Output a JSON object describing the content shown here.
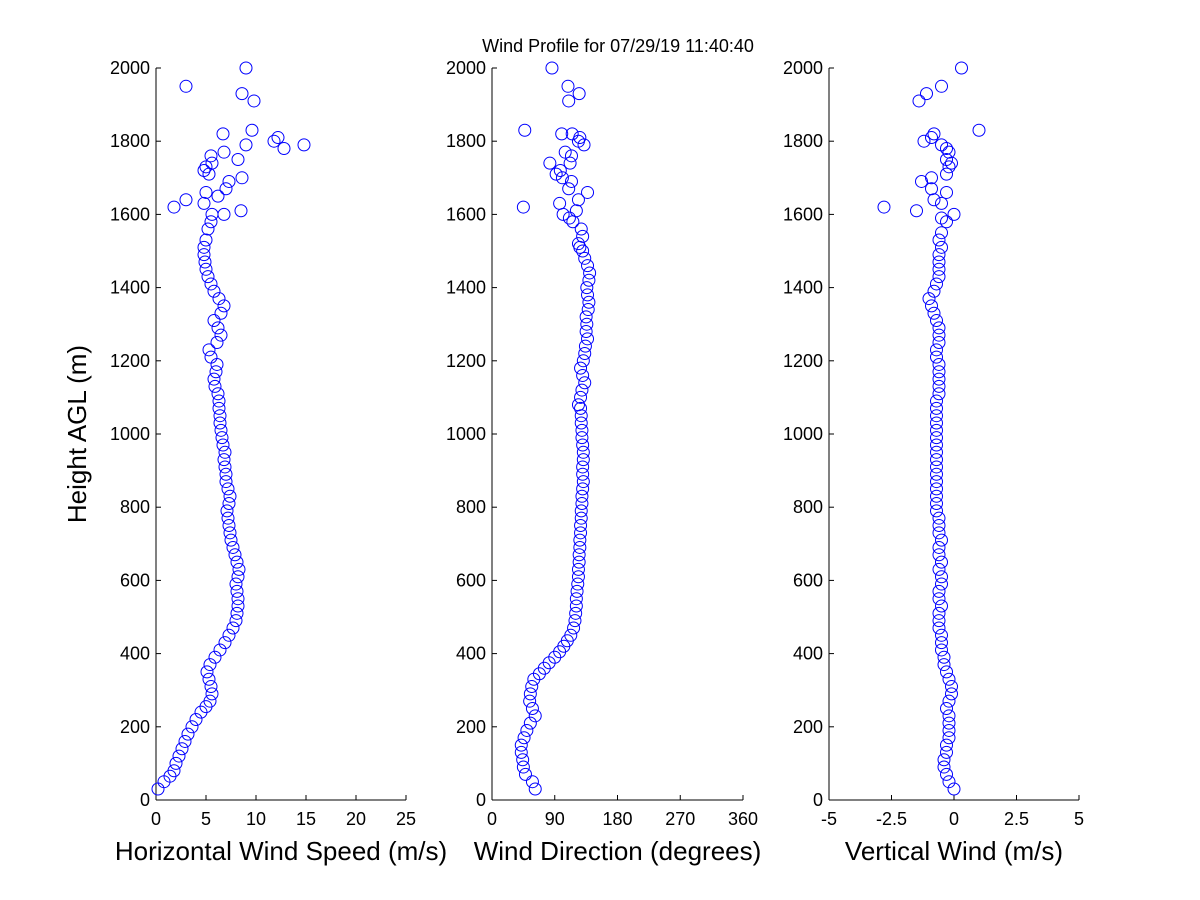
{
  "title": "Wind Profile for  07/29/19 11:40:40",
  "marker_color": "#0000ff",
  "chart_data": [
    {
      "type": "scatter",
      "xlabel": "Horizontal Wind Speed (m/s)",
      "ylabel": "Height AGL (m)",
      "xlim": [
        0,
        25
      ],
      "ylim": [
        0,
        2000
      ],
      "xticks": [
        "0",
        "5",
        "10",
        "15",
        "20",
        "25"
      ],
      "yticks": [
        "0",
        "200",
        "400",
        "600",
        "800",
        "1000",
        "1200",
        "1400",
        "1600",
        "1800",
        "2000"
      ],
      "grid": false,
      "points": [
        [
          0.2,
          30
        ],
        [
          0.8,
          50
        ],
        [
          1.4,
          65
        ],
        [
          1.8,
          80
        ],
        [
          2.0,
          100
        ],
        [
          2.3,
          120
        ],
        [
          2.6,
          140
        ],
        [
          2.9,
          160
        ],
        [
          3.2,
          180
        ],
        [
          3.6,
          200
        ],
        [
          4.0,
          220
        ],
        [
          4.5,
          240
        ],
        [
          5.0,
          255
        ],
        [
          5.4,
          270
        ],
        [
          5.6,
          290
        ],
        [
          5.5,
          310
        ],
        [
          5.3,
          330
        ],
        [
          5.1,
          350
        ],
        [
          5.4,
          370
        ],
        [
          5.9,
          390
        ],
        [
          6.4,
          410
        ],
        [
          6.9,
          430
        ],
        [
          7.3,
          450
        ],
        [
          7.7,
          470
        ],
        [
          8.0,
          490
        ],
        [
          8.1,
          510
        ],
        [
          8.2,
          530
        ],
        [
          8.2,
          550
        ],
        [
          8.1,
          570
        ],
        [
          8.0,
          590
        ],
        [
          8.2,
          610
        ],
        [
          8.3,
          630
        ],
        [
          8.1,
          650
        ],
        [
          7.9,
          670
        ],
        [
          7.7,
          690
        ],
        [
          7.5,
          710
        ],
        [
          7.4,
          730
        ],
        [
          7.3,
          750
        ],
        [
          7.2,
          770
        ],
        [
          7.1,
          790
        ],
        [
          7.3,
          810
        ],
        [
          7.4,
          830
        ],
        [
          7.2,
          850
        ],
        [
          7.0,
          870
        ],
        [
          7.0,
          890
        ],
        [
          6.9,
          910
        ],
        [
          6.8,
          930
        ],
        [
          6.9,
          950
        ],
        [
          6.7,
          970
        ],
        [
          6.6,
          990
        ],
        [
          6.5,
          1010
        ],
        [
          6.4,
          1030
        ],
        [
          6.4,
          1050
        ],
        [
          6.3,
          1070
        ],
        [
          6.3,
          1090
        ],
        [
          6.2,
          1110
        ],
        [
          5.9,
          1130
        ],
        [
          5.8,
          1150
        ],
        [
          6.0,
          1170
        ],
        [
          6.1,
          1190
        ],
        [
          5.5,
          1210
        ],
        [
          5.3,
          1230
        ],
        [
          6.1,
          1250
        ],
        [
          6.5,
          1270
        ],
        [
          6.2,
          1290
        ],
        [
          5.8,
          1310
        ],
        [
          6.5,
          1330
        ],
        [
          6.8,
          1350
        ],
        [
          6.3,
          1370
        ],
        [
          5.8,
          1390
        ],
        [
          5.5,
          1410
        ],
        [
          5.2,
          1430
        ],
        [
          5.0,
          1450
        ],
        [
          4.9,
          1470
        ],
        [
          4.8,
          1490
        ],
        [
          4.8,
          1510
        ],
        [
          5.0,
          1530
        ],
        [
          5.2,
          1560
        ],
        [
          5.5,
          1580
        ],
        [
          5.6,
          1600
        ],
        [
          6.8,
          1600
        ],
        [
          8.5,
          1610
        ],
        [
          1.8,
          1620
        ],
        [
          3.0,
          1640
        ],
        [
          4.8,
          1630
        ],
        [
          5.0,
          1660
        ],
        [
          6.2,
          1650
        ],
        [
          7.0,
          1670
        ],
        [
          7.3,
          1690
        ],
        [
          8.6,
          1700
        ],
        [
          5.3,
          1710
        ],
        [
          4.8,
          1720
        ],
        [
          5.0,
          1730
        ],
        [
          5.6,
          1740
        ],
        [
          8.2,
          1750
        ],
        [
          5.5,
          1760
        ],
        [
          6.8,
          1770
        ],
        [
          9.0,
          1790
        ],
        [
          11.8,
          1800
        ],
        [
          12.8,
          1780
        ],
        [
          12.2,
          1810
        ],
        [
          14.8,
          1790
        ],
        [
          6.7,
          1820
        ],
        [
          9.6,
          1830
        ],
        [
          9.8,
          1910
        ],
        [
          8.6,
          1930
        ],
        [
          3.0,
          1950
        ],
        [
          9.0,
          2000
        ]
      ]
    },
    {
      "type": "scatter",
      "xlabel": "Wind Direction (degrees)",
      "ylabel": "",
      "xlim": [
        0,
        360
      ],
      "ylim": [
        0,
        2000
      ],
      "xticks": [
        "0",
        "90",
        "180",
        "270",
        "360"
      ],
      "yticks": [
        "0",
        "200",
        "400",
        "600",
        "800",
        "1000",
        "1200",
        "1400",
        "1600",
        "1800",
        "2000"
      ],
      "grid": false,
      "points": [
        [
          62,
          30
        ],
        [
          58,
          50
        ],
        [
          48,
          70
        ],
        [
          45,
          90
        ],
        [
          44,
          110
        ],
        [
          42,
          130
        ],
        [
          42,
          150
        ],
        [
          46,
          170
        ],
        [
          50,
          190
        ],
        [
          55,
          210
        ],
        [
          62,
          230
        ],
        [
          58,
          250
        ],
        [
          54,
          270
        ],
        [
          55,
          290
        ],
        [
          57,
          310
        ],
        [
          60,
          330
        ],
        [
          68,
          345
        ],
        [
          75,
          360
        ],
        [
          82,
          375
        ],
        [
          90,
          390
        ],
        [
          97,
          405
        ],
        [
          103,
          420
        ],
        [
          108,
          435
        ],
        [
          113,
          450
        ],
        [
          117,
          470
        ],
        [
          119,
          490
        ],
        [
          120,
          510
        ],
        [
          121,
          530
        ],
        [
          121,
          550
        ],
        [
          122,
          570
        ],
        [
          123,
          590
        ],
        [
          124,
          610
        ],
        [
          124,
          630
        ],
        [
          125,
          650
        ],
        [
          125,
          670
        ],
        [
          126,
          690
        ],
        [
          126,
          710
        ],
        [
          127,
          730
        ],
        [
          127,
          750
        ],
        [
          128,
          770
        ],
        [
          128,
          790
        ],
        [
          129,
          810
        ],
        [
          129,
          830
        ],
        [
          130,
          850
        ],
        [
          131,
          870
        ],
        [
          130,
          890
        ],
        [
          130,
          910
        ],
        [
          131,
          930
        ],
        [
          131,
          950
        ],
        [
          130,
          970
        ],
        [
          129,
          990
        ],
        [
          129,
          1010
        ],
        [
          128,
          1030
        ],
        [
          128,
          1050
        ],
        [
          127,
          1070
        ],
        [
          124,
          1080
        ],
        [
          127,
          1100
        ],
        [
          129,
          1120
        ],
        [
          133,
          1140
        ],
        [
          130,
          1160
        ],
        [
          127,
          1180
        ],
        [
          131,
          1200
        ],
        [
          133,
          1220
        ],
        [
          134,
          1240
        ],
        [
          137,
          1260
        ],
        [
          135,
          1280
        ],
        [
          136,
          1300
        ],
        [
          135,
          1320
        ],
        [
          138,
          1340
        ],
        [
          139,
          1360
        ],
        [
          137,
          1380
        ],
        [
          136,
          1400
        ],
        [
          139,
          1420
        ],
        [
          140,
          1440
        ],
        [
          137,
          1460
        ],
        [
          133,
          1480
        ],
        [
          130,
          1500
        ],
        [
          126,
          1510
        ],
        [
          124,
          1520
        ],
        [
          130,
          1540
        ],
        [
          128,
          1560
        ],
        [
          116,
          1580
        ],
        [
          111,
          1590
        ],
        [
          102,
          1600
        ],
        [
          45,
          1620
        ],
        [
          121,
          1610
        ],
        [
          97,
          1630
        ],
        [
          137,
          1660
        ],
        [
          124,
          1640
        ],
        [
          110,
          1670
        ],
        [
          114,
          1690
        ],
        [
          101,
          1700
        ],
        [
          92,
          1710
        ],
        [
          98,
          1720
        ],
        [
          83,
          1740
        ],
        [
          112,
          1740
        ],
        [
          114,
          1760
        ],
        [
          105,
          1770
        ],
        [
          132,
          1790
        ],
        [
          124,
          1800
        ],
        [
          126,
          1810
        ],
        [
          100,
          1820
        ],
        [
          115,
          1820
        ],
        [
          47,
          1830
        ],
        [
          110,
          1910
        ],
        [
          125,
          1930
        ],
        [
          109,
          1950
        ],
        [
          86,
          2000
        ]
      ]
    },
    {
      "type": "scatter",
      "xlabel": "Vertical Wind (m/s)",
      "ylabel": "",
      "xlim": [
        -5,
        5
      ],
      "ylim": [
        0,
        2000
      ],
      "xticks": [
        "-5",
        "-2.5",
        "0",
        "2.5",
        "5"
      ],
      "yticks": [
        "0",
        "200",
        "400",
        "600",
        "800",
        "1000",
        "1200",
        "1400",
        "1600",
        "1800",
        "2000"
      ],
      "grid": false,
      "points": [
        [
          0,
          30
        ],
        [
          -0.2,
          50
        ],
        [
          -0.3,
          70
        ],
        [
          -0.4,
          90
        ],
        [
          -0.4,
          110
        ],
        [
          -0.3,
          130
        ],
        [
          -0.3,
          150
        ],
        [
          -0.2,
          170
        ],
        [
          -0.2,
          190
        ],
        [
          -0.2,
          210
        ],
        [
          -0.2,
          230
        ],
        [
          -0.3,
          250
        ],
        [
          -0.2,
          270
        ],
        [
          -0.1,
          290
        ],
        [
          -0.1,
          310
        ],
        [
          -0.2,
          330
        ],
        [
          -0.3,
          350
        ],
        [
          -0.4,
          370
        ],
        [
          -0.4,
          390
        ],
        [
          -0.5,
          410
        ],
        [
          -0.5,
          430
        ],
        [
          -0.5,
          450
        ],
        [
          -0.6,
          470
        ],
        [
          -0.6,
          490
        ],
        [
          -0.6,
          510
        ],
        [
          -0.5,
          530
        ],
        [
          -0.6,
          550
        ],
        [
          -0.6,
          570
        ],
        [
          -0.5,
          590
        ],
        [
          -0.5,
          610
        ],
        [
          -0.6,
          630
        ],
        [
          -0.5,
          650
        ],
        [
          -0.6,
          670
        ],
        [
          -0.6,
          690
        ],
        [
          -0.5,
          710
        ],
        [
          -0.6,
          730
        ],
        [
          -0.6,
          750
        ],
        [
          -0.6,
          770
        ],
        [
          -0.7,
          790
        ],
        [
          -0.7,
          810
        ],
        [
          -0.7,
          830
        ],
        [
          -0.7,
          850
        ],
        [
          -0.7,
          870
        ],
        [
          -0.7,
          890
        ],
        [
          -0.7,
          910
        ],
        [
          -0.7,
          930
        ],
        [
          -0.7,
          950
        ],
        [
          -0.7,
          970
        ],
        [
          -0.7,
          990
        ],
        [
          -0.7,
          1010
        ],
        [
          -0.7,
          1030
        ],
        [
          -0.7,
          1050
        ],
        [
          -0.7,
          1070
        ],
        [
          -0.7,
          1090
        ],
        [
          -0.6,
          1110
        ],
        [
          -0.6,
          1130
        ],
        [
          -0.6,
          1150
        ],
        [
          -0.6,
          1170
        ],
        [
          -0.6,
          1190
        ],
        [
          -0.7,
          1210
        ],
        [
          -0.7,
          1230
        ],
        [
          -0.6,
          1250
        ],
        [
          -0.6,
          1270
        ],
        [
          -0.6,
          1290
        ],
        [
          -0.7,
          1310
        ],
        [
          -0.8,
          1330
        ],
        [
          -0.9,
          1350
        ],
        [
          -1.0,
          1370
        ],
        [
          -0.8,
          1390
        ],
        [
          -0.7,
          1410
        ],
        [
          -0.6,
          1430
        ],
        [
          -0.6,
          1450
        ],
        [
          -0.6,
          1470
        ],
        [
          -0.6,
          1490
        ],
        [
          -0.5,
          1510
        ],
        [
          -0.6,
          1530
        ],
        [
          -0.5,
          1550
        ],
        [
          -0.3,
          1580
        ],
        [
          -0.5,
          1590
        ],
        [
          0.0,
          1600
        ],
        [
          -2.8,
          1620
        ],
        [
          -1.5,
          1610
        ],
        [
          -0.5,
          1630
        ],
        [
          -0.8,
          1640
        ],
        [
          -0.3,
          1660
        ],
        [
          -0.9,
          1670
        ],
        [
          -1.3,
          1690
        ],
        [
          -0.9,
          1700
        ],
        [
          -0.3,
          1710
        ],
        [
          -0.2,
          1730
        ],
        [
          -0.1,
          1740
        ],
        [
          -0.3,
          1750
        ],
        [
          -0.2,
          1770
        ],
        [
          -0.3,
          1780
        ],
        [
          -0.5,
          1790
        ],
        [
          -1.2,
          1800
        ],
        [
          -0.9,
          1810
        ],
        [
          -0.8,
          1820
        ],
        [
          1.0,
          1830
        ],
        [
          -1.4,
          1910
        ],
        [
          -1.1,
          1930
        ],
        [
          -0.5,
          1950
        ],
        [
          0.3,
          2000
        ]
      ]
    }
  ]
}
